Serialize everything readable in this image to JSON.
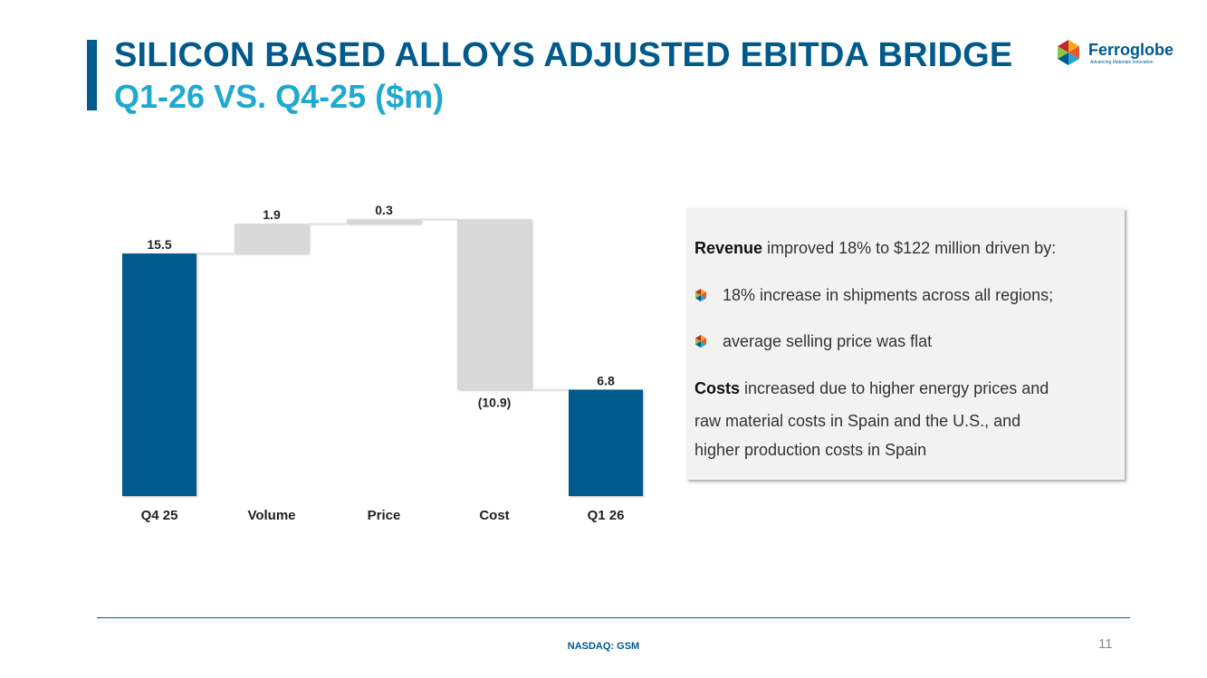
{
  "header": {
    "title": "SILICON BASED ALLOYS ADJUSTED EBITDA BRIDGE",
    "subtitle": "Q1-26 VS. Q4-25 ($m)"
  },
  "logo": {
    "name": "Ferroglobe",
    "tagline": "Advancing Materials Innovation"
  },
  "chart_data": {
    "type": "bar",
    "subtype": "waterfall",
    "categories": [
      "Q4 25",
      "Volume",
      "Price",
      "Cost",
      "Q1 26"
    ],
    "values": [
      15.5,
      1.9,
      0.3,
      -10.9,
      6.8
    ],
    "kinds": [
      "total",
      "delta",
      "delta",
      "delta",
      "total"
    ],
    "data_labels": [
      "15.5",
      "1.9",
      "0.3",
      "(10.9)",
      "6.8"
    ],
    "ylim": [
      0,
      17.7
    ],
    "grid": false,
    "legend": "none",
    "colors": {
      "total": "#005a8c",
      "delta": "#d9d9d9",
      "connector": "#e6e6e6"
    }
  },
  "info_box": {
    "revenue_bold": "Revenue",
    "revenue_rest": " improved 18% to $122 million driven by:",
    "bullets": [
      "18% increase in shipments across all regions;",
      "average selling price was flat"
    ],
    "costs_bold": "Costs",
    "costs_rest": " increased due to higher energy prices and",
    "costs_line2": "raw material costs in Spain and the U.S., and",
    "costs_line3": "higher production costs in Spain"
  },
  "footer": {
    "ticker": "NASDAQ: GSM",
    "page": "11"
  }
}
